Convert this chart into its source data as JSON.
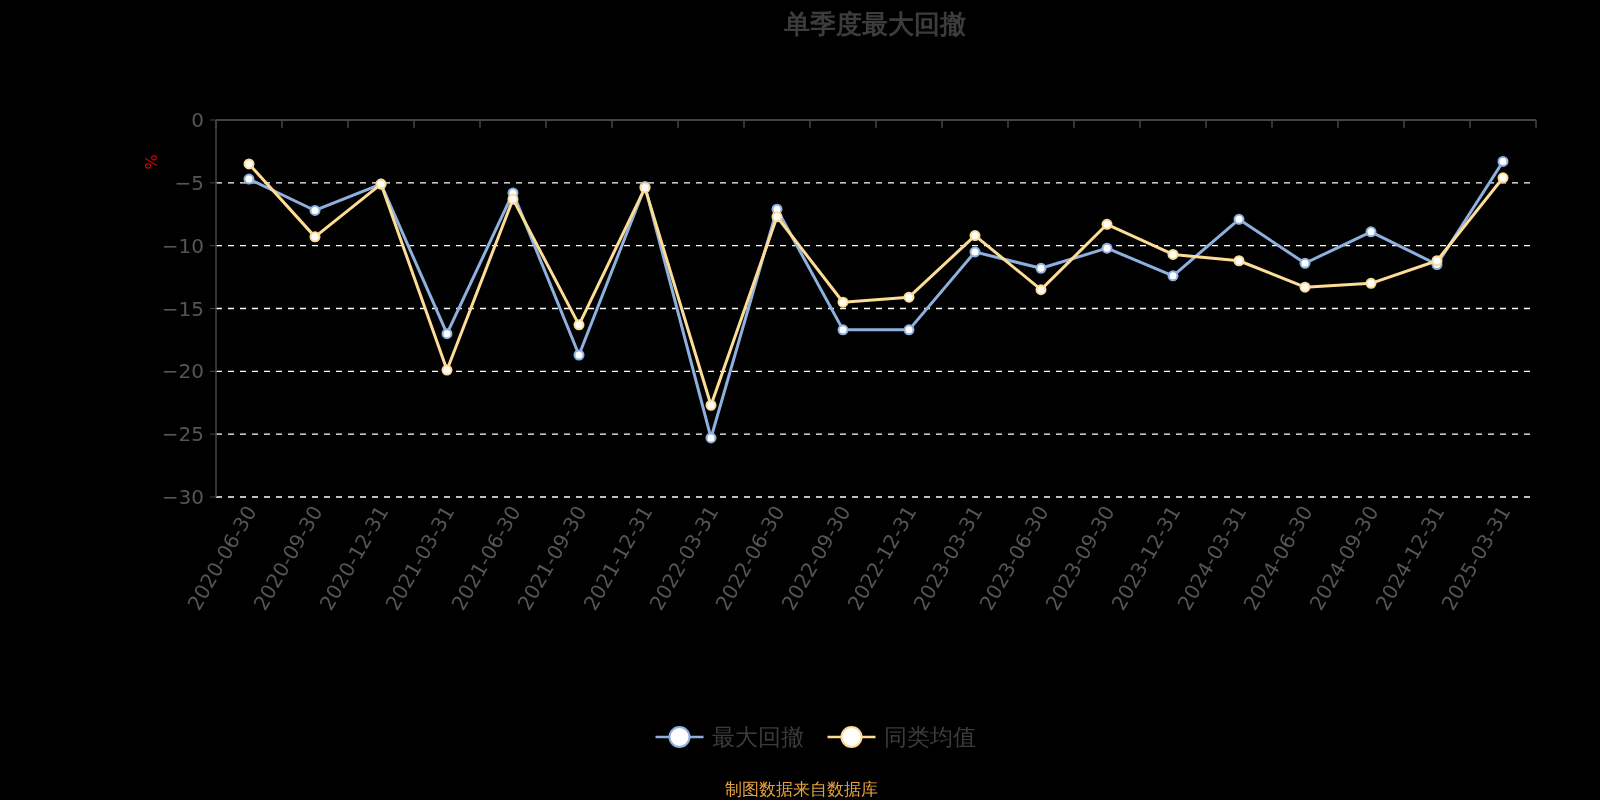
{
  "chart_data": {
    "type": "line",
    "title": "单季度最大回撤",
    "ylabel": "%",
    "ylim": [
      -30,
      0
    ],
    "yticks": [
      0,
      -5,
      -10,
      -15,
      -20,
      -25,
      -30
    ],
    "grid": "y",
    "legend": "bottom",
    "marker": "circle",
    "line_style": "solid",
    "categories": [
      "2020-06-30",
      "2020-09-30",
      "2020-12-31",
      "2021-03-31",
      "2021-06-30",
      "2021-09-30",
      "2021-12-31",
      "2022-03-31",
      "2022-06-30",
      "2022-09-30",
      "2022-12-31",
      "2023-03-31",
      "2023-06-30",
      "2023-09-30",
      "2023-12-31",
      "2024-03-31",
      "2024-06-30",
      "2024-09-30",
      "2024-12-31",
      "2025-03-31"
    ],
    "series": [
      {
        "name": "最大回撤",
        "color": "#8eb0de",
        "values": [
          -4.7,
          -7.2,
          -5.1,
          -17.0,
          -5.8,
          -18.7,
          -5.3,
          -25.3,
          -7.1,
          -16.7,
          -16.7,
          -10.5,
          -11.8,
          -10.2,
          -12.4,
          -7.9,
          -11.4,
          -8.9,
          -11.5,
          -3.3
        ]
      },
      {
        "name": "同类均值",
        "color": "#fddc95",
        "values": [
          -3.5,
          -9.3,
          -5.1,
          -19.9,
          -6.3,
          -16.3,
          -5.4,
          -22.7,
          -7.7,
          -14.5,
          -14.1,
          -9.2,
          -13.5,
          -8.3,
          -10.7,
          -11.2,
          -13.3,
          -13.0,
          -11.2,
          -4.6
        ]
      }
    ],
    "annotations": [
      "制图数据来自数据库"
    ]
  }
}
